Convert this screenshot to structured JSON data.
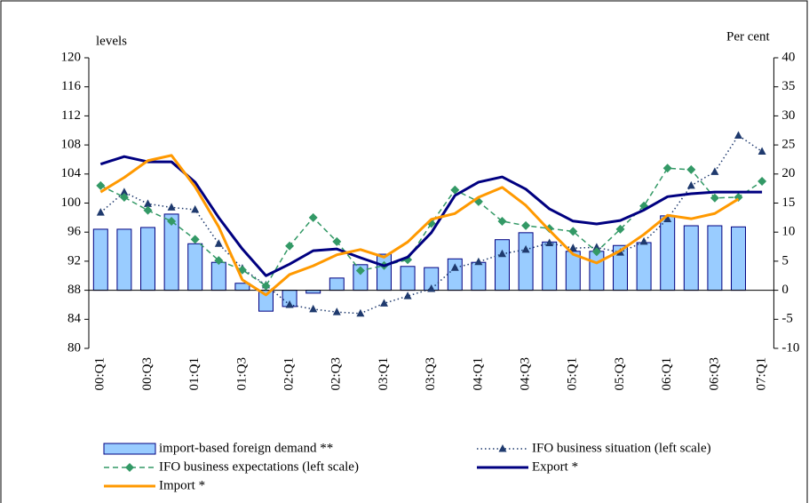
{
  "chart_data": {
    "type": "combo",
    "y_label": "levels",
    "y2_label": "Per cent",
    "categories": [
      "00:Q1",
      null,
      "00:Q3",
      null,
      "01:Q1",
      null,
      "01:Q3",
      null,
      "02:Q1",
      null,
      "02:Q3",
      null,
      "03:Q1",
      null,
      "03:Q3",
      null,
      "04:Q1",
      null,
      "04:Q3",
      null,
      "05:Q1",
      null,
      "05:Q3",
      null,
      "06:Q1",
      null,
      "06:Q3",
      null,
      "07:Q1"
    ],
    "ylim": [
      80,
      120
    ],
    "yticks": [
      80,
      84,
      88,
      92,
      96,
      100,
      104,
      108,
      112,
      116,
      120
    ],
    "y2lim": [
      -10,
      40
    ],
    "y2ticks": [
      -10,
      -5,
      0,
      5,
      10,
      15,
      20,
      25,
      30,
      35,
      40
    ],
    "legend": "bottom",
    "series": [
      {
        "name": "import-based foreign demand **",
        "kind": "bar",
        "axis": "y2",
        "color": "#99ccff",
        "edge": "#000080",
        "values": [
          10.5,
          10.5,
          10.8,
          13.1,
          8.0,
          4.8,
          1.2,
          -3.6,
          -2.8,
          -0.5,
          2.1,
          4.4,
          6.2,
          4.1,
          3.9,
          5.4,
          4.8,
          8.7,
          9.9,
          8.3,
          6.7,
          6.7,
          7.7,
          8.2,
          12.8,
          11.1,
          11.1,
          10.9,
          null
        ]
      },
      {
        "name": "IFO business situation (left scale)",
        "kind": "line",
        "dash": "dotted",
        "marker": "triangle",
        "color": "#1f3a6e",
        "values": [
          98.7,
          101.5,
          99.9,
          99.4,
          99.1,
          94.4,
          91.0,
          88.7,
          86.0,
          85.4,
          85.0,
          84.8,
          86.2,
          87.2,
          88.2,
          91.1,
          91.9,
          93.0,
          93.6,
          94.5,
          93.8,
          93.9,
          93.2,
          94.7,
          97.8,
          102.4,
          104.3,
          109.3,
          107.1
        ]
      },
      {
        "name": "IFO business expectations (left scale)",
        "kind": "line",
        "dash": "dashed",
        "marker": "diamond",
        "color": "#339966",
        "values": [
          102.4,
          100.8,
          99.0,
          97.5,
          95.0,
          92.1,
          90.8,
          88.6,
          94.1,
          98.0,
          94.7,
          90.7,
          91.4,
          92.2,
          97.2,
          101.8,
          100.2,
          97.5,
          96.9,
          96.5,
          96.1,
          93.3,
          96.4,
          99.6,
          104.8,
          104.6,
          100.7,
          100.8,
          103.0
        ]
      },
      {
        "name": "Export *",
        "kind": "line",
        "dash": "solid",
        "axis": "y2",
        "color": "#000080",
        "values": [
          21.7,
          23.0,
          22.1,
          22.1,
          18.6,
          12.5,
          7.1,
          2.5,
          4.5,
          6.8,
          7.1,
          5.6,
          4.2,
          5.7,
          9.9,
          16.3,
          18.6,
          19.5,
          17.4,
          14.0,
          11.9,
          11.4,
          12.0,
          13.8,
          16.1,
          16.6,
          16.9,
          16.9,
          16.9
        ]
      },
      {
        "name": "Import *",
        "kind": "line",
        "dash": "solid",
        "axis": "y2",
        "color": "#ff9900",
        "values": [
          16.9,
          19.4,
          22.3,
          23.2,
          17.8,
          10.9,
          1.8,
          -0.8,
          2.7,
          4.2,
          6.1,
          7.0,
          5.7,
          8.3,
          12.2,
          13.2,
          16.0,
          17.7,
          14.6,
          10.3,
          6.2,
          4.7,
          6.8,
          9.6,
          12.9,
          12.3,
          13.2,
          15.7,
          null
        ]
      }
    ]
  }
}
